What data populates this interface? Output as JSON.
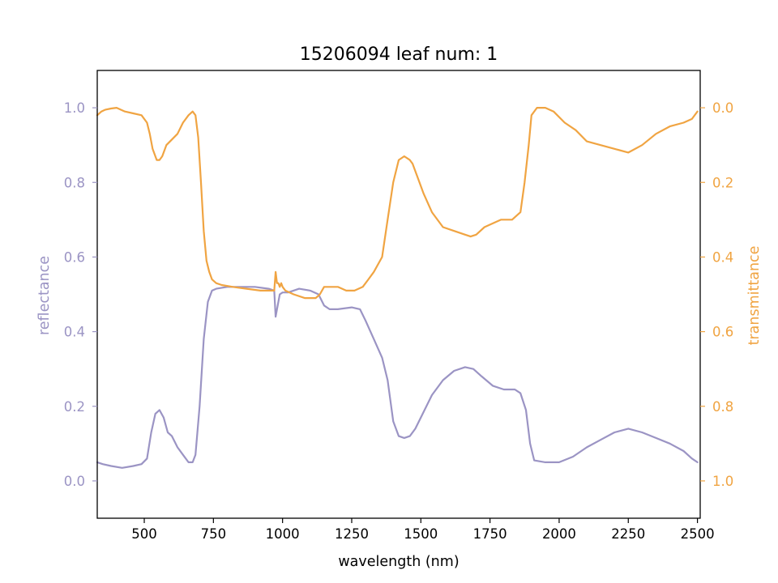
{
  "chart_data": {
    "type": "line",
    "title": "15206094 leaf num: 1",
    "xlabel": "wavelength (nm)",
    "ylabel_left": "reflectance",
    "ylabel_right": "transmittance",
    "xlim": [
      330,
      2510
    ],
    "ylim_left": [
      -0.1,
      1.1
    ],
    "ylim_right": [
      1.1,
      -0.1
    ],
    "right_axis_inverted": true,
    "grid": false,
    "legend": "none",
    "x_ticks": [
      500,
      750,
      1000,
      1250,
      1500,
      1750,
      2000,
      2250,
      2500
    ],
    "x_tick_labels": [
      "500",
      "750",
      "1000",
      "1250",
      "1500",
      "1750",
      "2000",
      "2250",
      "2500"
    ],
    "y_left_ticks": [
      0.0,
      0.2,
      0.4,
      0.6,
      0.8,
      1.0
    ],
    "y_left_tick_labels": [
      "0.0",
      "0.2",
      "0.4",
      "0.6",
      "0.8",
      "1.0"
    ],
    "y_right_ticks": [
      0.0,
      0.2,
      0.4,
      0.6,
      0.8,
      1.0
    ],
    "y_right_tick_labels": [
      "0.0",
      "0.2",
      "0.4",
      "0.6",
      "0.8",
      "1.0"
    ],
    "series": [
      {
        "axis": "left",
        "color": "#9b94c4",
        "x": [
          330,
          350,
          380,
          420,
          460,
          490,
          510,
          525,
          540,
          555,
          570,
          585,
          600,
          620,
          640,
          660,
          675,
          685,
          700,
          715,
          730,
          745,
          760,
          800,
          850,
          900,
          950,
          970,
          975,
          980,
          990,
          1000,
          1020,
          1060,
          1100,
          1130,
          1150,
          1170,
          1200,
          1250,
          1280,
          1300,
          1330,
          1360,
          1380,
          1400,
          1420,
          1440,
          1460,
          1480,
          1500,
          1540,
          1580,
          1620,
          1660,
          1690,
          1720,
          1760,
          1800,
          1840,
          1860,
          1880,
          1895,
          1905,
          1910,
          1950,
          2000,
          2050,
          2100,
          2150,
          2200,
          2250,
          2300,
          2350,
          2400,
          2450,
          2480,
          2500
        ],
        "y": [
          0.05,
          0.045,
          0.04,
          0.035,
          0.04,
          0.045,
          0.06,
          0.13,
          0.18,
          0.19,
          0.17,
          0.13,
          0.12,
          0.09,
          0.07,
          0.05,
          0.05,
          0.07,
          0.2,
          0.38,
          0.48,
          0.51,
          0.515,
          0.52,
          0.52,
          0.52,
          0.515,
          0.51,
          0.44,
          0.46,
          0.5,
          0.505,
          0.505,
          0.515,
          0.51,
          0.5,
          0.47,
          0.46,
          0.46,
          0.465,
          0.46,
          0.43,
          0.38,
          0.33,
          0.27,
          0.16,
          0.12,
          0.115,
          0.12,
          0.14,
          0.17,
          0.23,
          0.27,
          0.295,
          0.305,
          0.3,
          0.28,
          0.255,
          0.245,
          0.245,
          0.235,
          0.19,
          0.1,
          0.07,
          0.055,
          0.05,
          0.05,
          0.065,
          0.09,
          0.11,
          0.13,
          0.14,
          0.13,
          0.115,
          0.1,
          0.08,
          0.06,
          0.05
        ]
      },
      {
        "axis": "right",
        "color": "#f0a442",
        "x": [
          330,
          345,
          360,
          380,
          400,
          430,
          460,
          490,
          510,
          520,
          530,
          545,
          555,
          565,
          580,
          600,
          620,
          640,
          660,
          675,
          685,
          695,
          705,
          715,
          725,
          735,
          745,
          760,
          780,
          820,
          870,
          920,
          960,
          970,
          975,
          980,
          985,
          990,
          995,
          1000,
          1010,
          1040,
          1080,
          1100,
          1120,
          1135,
          1150,
          1170,
          1200,
          1230,
          1260,
          1290,
          1310,
          1330,
          1360,
          1380,
          1400,
          1420,
          1440,
          1460,
          1470,
          1490,
          1510,
          1540,
          1580,
          1620,
          1660,
          1680,
          1700,
          1730,
          1760,
          1790,
          1830,
          1860,
          1875,
          1890,
          1900,
          1920,
          1950,
          1980,
          2020,
          2060,
          2100,
          2150,
          2200,
          2250,
          2300,
          2350,
          2400,
          2450,
          2480,
          2500
        ],
        "y": [
          0.02,
          0.01,
          0.005,
          0.002,
          0.0,
          0.01,
          0.015,
          0.02,
          0.04,
          0.07,
          0.11,
          0.14,
          0.14,
          0.13,
          0.1,
          0.085,
          0.07,
          0.04,
          0.02,
          0.01,
          0.02,
          0.08,
          0.2,
          0.33,
          0.41,
          0.44,
          0.46,
          0.47,
          0.475,
          0.48,
          0.485,
          0.49,
          0.49,
          0.49,
          0.44,
          0.47,
          0.47,
          0.48,
          0.47,
          0.48,
          0.49,
          0.5,
          0.51,
          0.51,
          0.51,
          0.5,
          0.48,
          0.48,
          0.48,
          0.49,
          0.49,
          0.48,
          0.46,
          0.44,
          0.4,
          0.3,
          0.2,
          0.14,
          0.13,
          0.14,
          0.15,
          0.19,
          0.23,
          0.28,
          0.32,
          0.33,
          0.34,
          0.345,
          0.34,
          0.32,
          0.31,
          0.3,
          0.3,
          0.28,
          0.2,
          0.1,
          0.02,
          0.0,
          0.0,
          0.01,
          0.04,
          0.06,
          0.09,
          0.1,
          0.11,
          0.12,
          0.1,
          0.07,
          0.05,
          0.04,
          0.03,
          0.01
        ]
      }
    ]
  }
}
